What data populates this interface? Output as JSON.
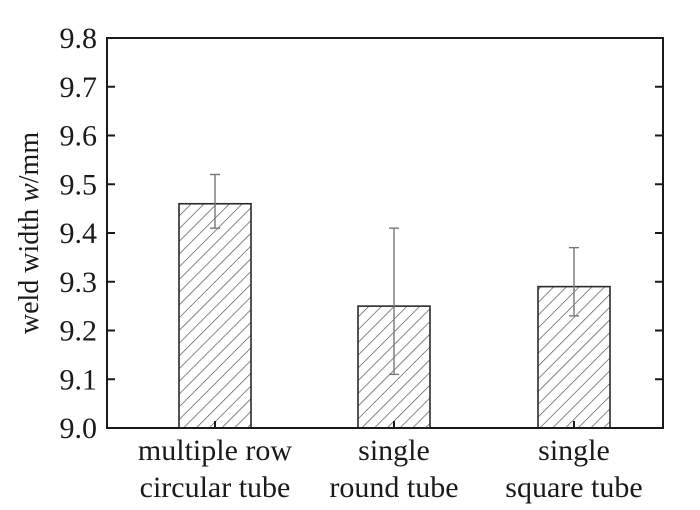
{
  "chart_data": {
    "type": "bar",
    "categories": [
      [
        "multiple row",
        "circular tube"
      ],
      [
        "single",
        "round tube"
      ],
      [
        "single",
        "square tube"
      ]
    ],
    "values": [
      9.46,
      9.25,
      9.29
    ],
    "error_low": [
      9.41,
      9.11,
      9.23
    ],
    "error_high": [
      9.52,
      9.41,
      9.37
    ],
    "ylabel_main": "weld width ",
    "ylabel_italic": "w",
    "ylabel_unit": "/mm",
    "ylim": [
      9.0,
      9.8
    ],
    "yticks": [
      "9.0",
      "9.1",
      "9.2",
      "9.3",
      "9.4",
      "9.5",
      "9.6",
      "9.7",
      "9.8"
    ],
    "bar_fill": "hatched",
    "colors": {
      "axis": "#1a1a1a",
      "bar_edge": "#2a2a2a",
      "hatch": "#555555",
      "error_bar": "#777777"
    },
    "grid": false,
    "legend": "none"
  }
}
